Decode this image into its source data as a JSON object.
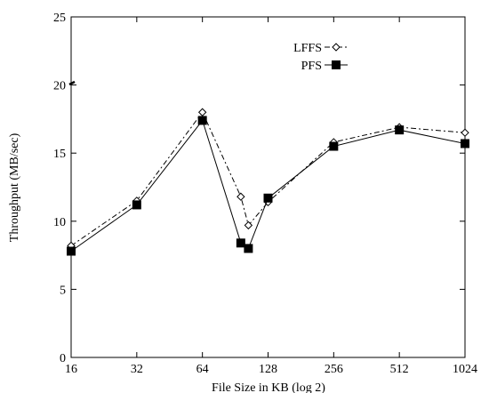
{
  "chart_data": {
    "type": "line",
    "xlabel": "File Size in KB (log 2)",
    "ylabel": "Throughput (MB/sec)",
    "x_scale": "log2",
    "xlim": [
      16,
      1024
    ],
    "ylim": [
      0,
      25
    ],
    "x_ticks": [
      16,
      32,
      64,
      128,
      256,
      512,
      1024
    ],
    "x_tick_labels": [
      "16",
      "32",
      "64",
      "128",
      "256",
      "512",
      "1024"
    ],
    "y_ticks": [
      0,
      5,
      10,
      15,
      20,
      25
    ],
    "y_tick_labels": [
      "0",
      "5",
      "10",
      "15",
      "20",
      "25"
    ],
    "grid": false,
    "legend_position": "top-right",
    "series": [
      {
        "name": "LFFS",
        "line_style": "dash-dot",
        "marker": "open-diamond",
        "color": "#000000",
        "x": [
          16,
          32,
          64,
          96,
          104,
          128,
          256,
          512,
          1024
        ],
        "y": [
          8.2,
          11.5,
          18.0,
          11.8,
          9.7,
          11.4,
          15.8,
          16.9,
          16.5
        ]
      },
      {
        "name": "PFS",
        "line_style": "solid",
        "marker": "filled-square",
        "color": "#000000",
        "x": [
          16,
          32,
          64,
          96,
          104,
          128,
          256,
          512,
          1024
        ],
        "y": [
          7.8,
          11.2,
          17.4,
          8.4,
          8.0,
          11.7,
          15.5,
          16.7,
          15.7
        ]
      }
    ]
  }
}
